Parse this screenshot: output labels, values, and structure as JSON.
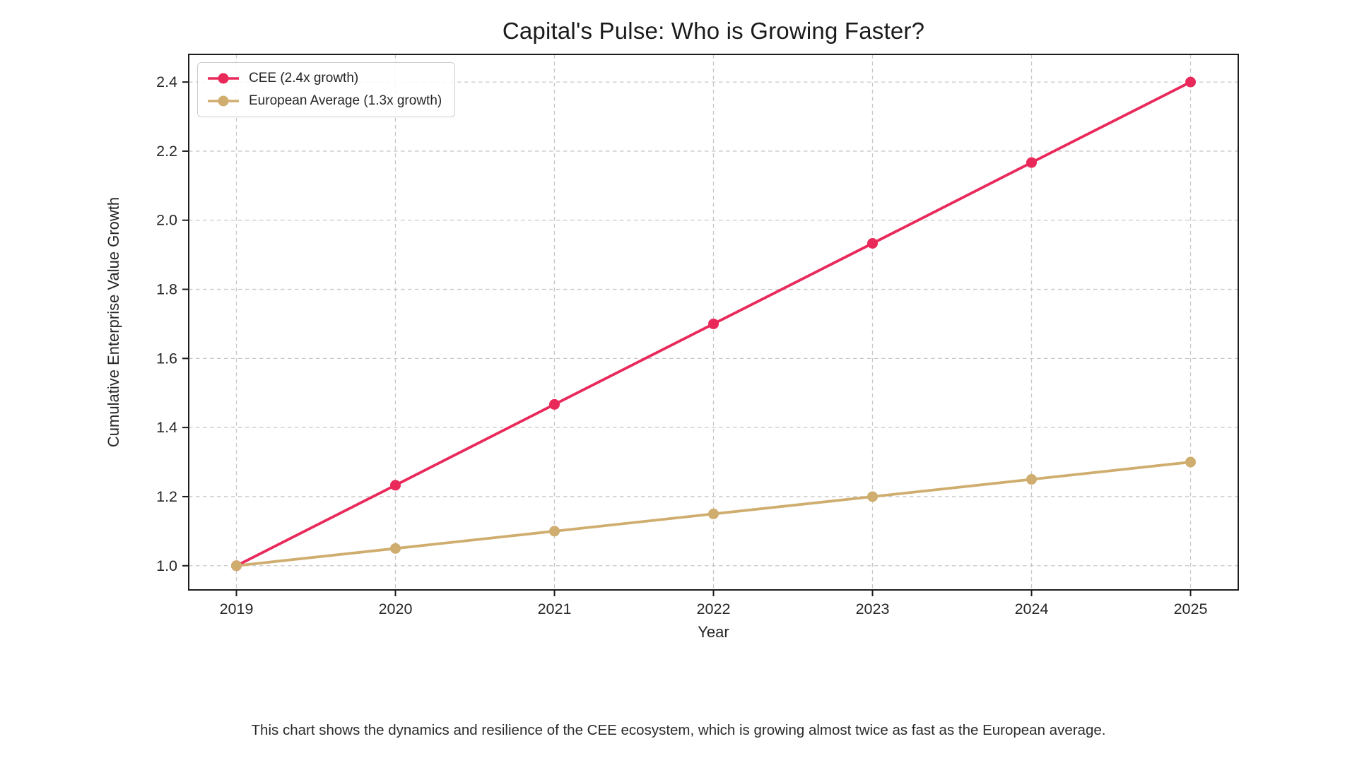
{
  "caption": "This chart shows the dynamics and resilience of the CEE ecosystem, which is growing almost twice as fast as the European average.",
  "colors": {
    "cee_accent": "#E9295A",
    "european_accent": "#CFAD6E",
    "grid": "#C7C7C7",
    "spine": "#1C1C1C",
    "tick_text": "#262626"
  },
  "chart_data": {
    "type": "line",
    "title": "Capital's Pulse: Who is Growing Faster?",
    "xlabel": "Year",
    "ylabel": "Cumulative Enterprise Value Growth",
    "x": [
      2019,
      2020,
      2021,
      2022,
      2023,
      2024,
      2025
    ],
    "x_tick_labels": [
      "2019",
      "2020",
      "2021",
      "2022",
      "2023",
      "2024",
      "2025"
    ],
    "y_ticks": [
      1.0,
      1.2,
      1.4,
      1.6,
      1.8,
      2.0,
      2.2,
      2.4
    ],
    "y_tick_labels": [
      "1.0",
      "1.2",
      "1.4",
      "1.6",
      "1.8",
      "2.0",
      "2.2",
      "2.4"
    ],
    "xlim": [
      2018.7,
      2025.3
    ],
    "ylim": [
      0.93,
      2.48
    ],
    "grid": true,
    "grid_style": "dashed",
    "legend_position": "upper-left",
    "series": [
      {
        "name": "CEE (2.4x growth)",
        "color": "#E9295A",
        "values": [
          1.0,
          1.233,
          1.467,
          1.7,
          1.933,
          2.167,
          2.4
        ]
      },
      {
        "name": "European Average (1.3x growth)",
        "color": "#CFAD6E",
        "values": [
          1.0,
          1.05,
          1.1,
          1.15,
          1.2,
          1.25,
          1.3
        ]
      }
    ]
  }
}
